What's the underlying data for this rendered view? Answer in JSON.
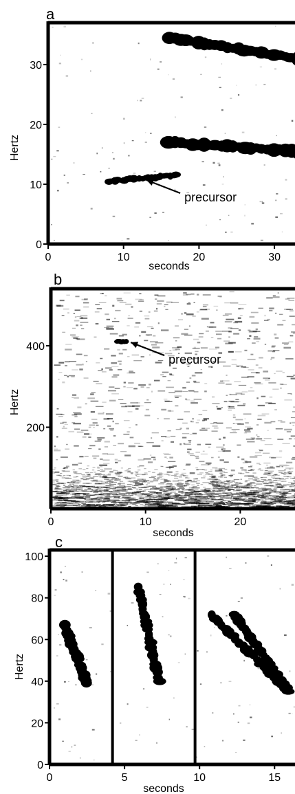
{
  "chart_data": [
    {
      "type": "spectrogram",
      "panel_letter": "a",
      "xlabel": "seconds",
      "ylabel": "Hertz",
      "xticks": [
        0,
        10,
        20,
        30
      ],
      "yticks": [
        0,
        10,
        20,
        30
      ],
      "xlim": [
        0,
        33
      ],
      "ylim": [
        0,
        37
      ],
      "annotations": [
        {
          "text": "precursor",
          "x": 12.5,
          "y": 10.8
        }
      ],
      "calls": [
        {
          "name": "precursor",
          "t_start": 8,
          "t_end": 17,
          "f_start": 10.5,
          "f_end": 11.5
        },
        {
          "t_start": 16,
          "t_end": 33,
          "f_start": 17,
          "f_end": 15.5
        },
        {
          "t_start": 16,
          "t_end": 33,
          "f_start": 34.5,
          "f_end": 31
        }
      ]
    },
    {
      "type": "spectrogram",
      "panel_letter": "b",
      "xlabel": "seconds",
      "ylabel": "Hertz",
      "xticks": [
        0,
        10,
        20
      ],
      "yticks": [
        200,
        400
      ],
      "xlim": [
        0,
        26
      ],
      "ylim": [
        0,
        540
      ],
      "annotations": [
        {
          "text": "precursor",
          "x": 8,
          "y": 410
        }
      ],
      "calls": [
        {
          "name": "precursor",
          "t_start": 7,
          "t_end": 8,
          "f_start": 410,
          "f_end": 410
        }
      ],
      "noise_band_hz": [
        0,
        110
      ]
    },
    {
      "type": "spectrogram",
      "panel_letter": "c",
      "xlabel": "seconds",
      "ylabel": "Hertz",
      "xticks": [
        0,
        5,
        10,
        15
      ],
      "yticks": [
        0,
        20,
        40,
        60,
        80,
        100
      ],
      "xlim": [
        0,
        16.5
      ],
      "ylim": [
        0,
        103
      ],
      "segment_boundaries_s": [
        4.2,
        9.7
      ],
      "calls": [
        {
          "t_start": 1.0,
          "t_end": 2.5,
          "f_start": 67,
          "f_end": 39
        },
        {
          "t_start": 5.9,
          "t_end": 7.3,
          "f_start": 85,
          "f_end": 40
        },
        {
          "t_start": 10.8,
          "t_end": 15.9,
          "f_start": 72,
          "f_end": 35
        },
        {
          "t_start": 12.3,
          "t_end": 15.8,
          "f_start": 72,
          "f_end": 37
        }
      ]
    }
  ]
}
